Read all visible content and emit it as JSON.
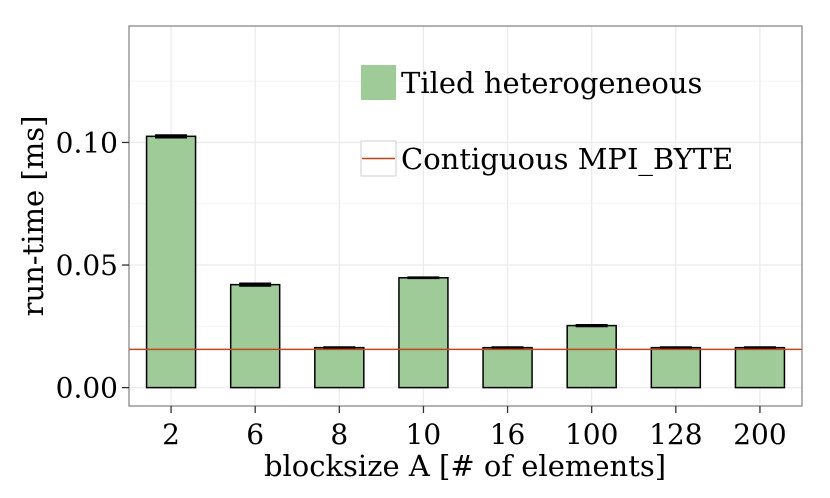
{
  "chart_data": {
    "type": "bar",
    "title": "",
    "xlabel": "blocksize A [# of elements]",
    "ylabel": "run-time [ms]",
    "categories": [
      "2",
      "6",
      "8",
      "10",
      "16",
      "100",
      "128",
      "200"
    ],
    "series": [
      {
        "name": "Tiled heterogeneous",
        "values": [
          0.1025,
          0.042,
          0.0163,
          0.0448,
          0.0163,
          0.0253,
          0.0163,
          0.0163
        ],
        "error_high": [
          0.103,
          0.0425,
          0.0165,
          0.045,
          0.0165,
          0.0256,
          0.0165,
          0.0165
        ],
        "error_low": [
          0.102,
          0.0415,
          0.0161,
          0.0446,
          0.0161,
          0.025,
          0.0161,
          0.0161
        ],
        "color": "#9ecb97"
      }
    ],
    "reference_lines": [
      {
        "name": "Contiguous MPI_BYTE",
        "value": 0.0156,
        "color": "#c0461e"
      }
    ],
    "yticks": [
      "0.00",
      "0.05",
      "0.10"
    ],
    "ytick_values": [
      0.0,
      0.05,
      0.1
    ],
    "ylim": [
      -0.0075,
      0.1475
    ],
    "grid": true,
    "legend": "top-right",
    "colors": {
      "bar": "#9ecb97",
      "bar_edge": "#000000",
      "ref_line": "#c0461e",
      "grid": "#ebebeb",
      "panel_border": "#7f7f7f"
    }
  }
}
